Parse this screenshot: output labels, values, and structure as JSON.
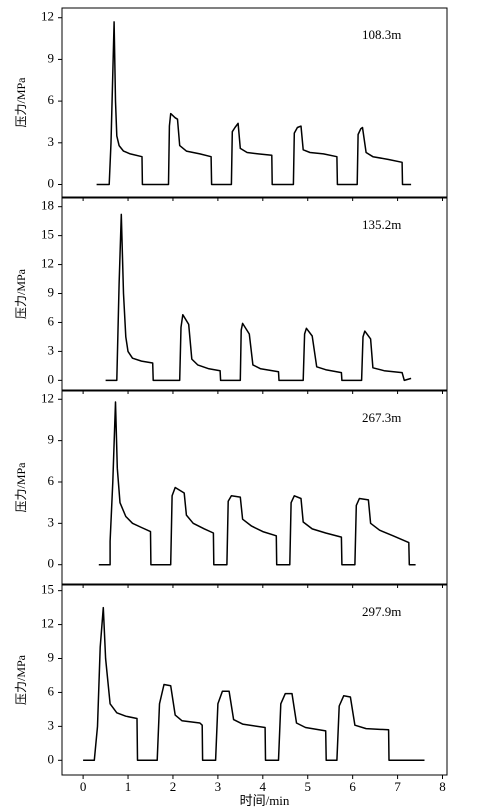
{
  "chart_data": [
    {
      "type": "line",
      "annotation": "108.3m",
      "ylabel": "压力/MPa",
      "ylim": [
        -0.9,
        12.7
      ],
      "yticks": [
        0,
        3,
        6,
        9,
        12
      ],
      "series": [
        {
          "color": "#000000",
          "x": [
            0.3,
            0.58,
            0.62,
            0.66,
            0.69,
            0.72,
            0.75,
            0.8,
            0.9,
            1.05,
            1.31,
            1.32,
            1.9,
            1.92,
            1.95,
            2.05,
            2.1,
            2.15,
            2.3,
            2.6,
            2.85,
            2.86,
            3.3,
            3.32,
            3.38,
            3.45,
            3.5,
            3.65,
            3.9,
            4.2,
            4.21,
            4.68,
            4.7,
            4.77,
            4.85,
            4.9,
            5.05,
            5.35,
            5.65,
            5.66,
            6.1,
            6.12,
            6.18,
            6.22,
            6.3,
            6.45,
            6.8,
            7.1,
            7.11,
            7.3
          ],
          "values": [
            0,
            0,
            3,
            8,
            11.7,
            6,
            3.5,
            2.8,
            2.4,
            2.2,
            2.0,
            0,
            0,
            4.2,
            5.1,
            4.8,
            4.7,
            2.8,
            2.4,
            2.2,
            2.0,
            0,
            0,
            3.8,
            4.1,
            4.4,
            2.6,
            2.3,
            2.2,
            2.1,
            0,
            0,
            3.7,
            4.1,
            4.2,
            2.5,
            2.3,
            2.2,
            2.0,
            0,
            0,
            3.6,
            4.0,
            4.1,
            2.3,
            2.0,
            1.8,
            1.6,
            0,
            0
          ]
        }
      ]
    },
    {
      "type": "line",
      "annotation": "135.2m",
      "ylabel": "压力/MPa",
      "ylim": [
        -1,
        18.9
      ],
      "yticks": [
        0,
        3,
        6,
        9,
        12,
        15,
        18
      ],
      "series": [
        {
          "color": "#000000",
          "x": [
            0.5,
            0.75,
            0.8,
            0.85,
            0.9,
            0.95,
            1.0,
            1.1,
            1.3,
            1.55,
            1.56,
            2.15,
            2.18,
            2.22,
            2.35,
            2.42,
            2.55,
            2.8,
            3.05,
            3.06,
            3.5,
            3.52,
            3.55,
            3.7,
            3.78,
            3.95,
            4.35,
            4.36,
            4.9,
            4.93,
            4.97,
            5.1,
            5.2,
            5.4,
            5.75,
            5.76,
            6.2,
            6.23,
            6.27,
            6.4,
            6.45,
            6.7,
            7.1,
            7.15,
            7.3
          ],
          "values": [
            0,
            0,
            10,
            17.2,
            9,
            4.5,
            3.0,
            2.3,
            2.0,
            1.8,
            0,
            0,
            5.5,
            6.8,
            5.8,
            2.2,
            1.6,
            1.2,
            1.0,
            0,
            0,
            5.2,
            5.9,
            4.8,
            1.6,
            1.2,
            0.9,
            0,
            0,
            4.8,
            5.4,
            4.6,
            1.4,
            1.1,
            0.8,
            0,
            0,
            4.5,
            5.1,
            4.3,
            1.3,
            1.0,
            0.8,
            0,
            0.2
          ]
        }
      ]
    },
    {
      "type": "line",
      "annotation": "267.3m",
      "ylabel": "压力/MPa",
      "ylim": [
        -1.4,
        12.6
      ],
      "yticks": [
        0,
        3,
        6,
        9,
        12
      ],
      "series": [
        {
          "color": "#000000",
          "x": [
            0.35,
            0.6,
            0.6,
            0.66,
            0.72,
            0.76,
            0.82,
            0.95,
            1.1,
            1.3,
            1.5,
            1.51,
            1.95,
            1.98,
            2.05,
            2.25,
            2.3,
            2.45,
            2.7,
            2.9,
            2.91,
            3.2,
            3.23,
            3.3,
            3.5,
            3.55,
            3.75,
            4.0,
            4.3,
            4.31,
            4.6,
            4.63,
            4.7,
            4.85,
            4.9,
            5.1,
            5.4,
            5.75,
            5.76,
            6.05,
            6.08,
            6.15,
            6.35,
            6.4,
            6.6,
            6.9,
            7.25,
            7.26,
            7.4
          ],
          "values": [
            0,
            0,
            1.7,
            6,
            11.8,
            7,
            4.5,
            3.5,
            3.0,
            2.7,
            2.4,
            0,
            0,
            5.0,
            5.6,
            5.2,
            3.6,
            3.0,
            2.6,
            2.3,
            0,
            0,
            4.6,
            5.0,
            4.9,
            3.3,
            2.8,
            2.4,
            2.1,
            0,
            0,
            4.5,
            5.0,
            4.8,
            3.1,
            2.6,
            2.3,
            2.0,
            0,
            0,
            4.3,
            4.8,
            4.7,
            3.0,
            2.5,
            2.1,
            1.6,
            0,
            0
          ]
        }
      ]
    },
    {
      "type": "line",
      "annotation": "297.9m",
      "ylabel": "压力/MPa",
      "ylim": [
        -1.3,
        15.5
      ],
      "yticks": [
        0,
        3,
        6,
        9,
        12,
        15
      ],
      "xlabel": "时间/min",
      "xlim": [
        -0.47,
        8.1
      ],
      "xticks": [
        0,
        1,
        2,
        3,
        4,
        5,
        6,
        7,
        8
      ],
      "series": [
        {
          "color": "#000000",
          "x": [
            0,
            0.25,
            0.32,
            0.38,
            0.45,
            0.5,
            0.6,
            0.75,
            0.95,
            1.2,
            1.21,
            1.65,
            1.7,
            1.8,
            1.95,
            2.05,
            2.2,
            2.6,
            2.65,
            2.66,
            2.95,
            3.0,
            3.1,
            3.25,
            3.35,
            3.55,
            4.05,
            4.06,
            4.35,
            4.4,
            4.5,
            4.65,
            4.75,
            4.95,
            5.4,
            5.41,
            5.65,
            5.7,
            5.8,
            5.95,
            6.05,
            6.3,
            6.8,
            6.81,
            7.6
          ],
          "values": [
            0,
            0,
            3,
            10,
            13.5,
            9,
            5,
            4.2,
            3.9,
            3.7,
            0,
            0,
            5,
            6.7,
            6.6,
            4.0,
            3.5,
            3.3,
            3.1,
            0,
            0,
            5,
            6.1,
            6.1,
            3.6,
            3.2,
            2.9,
            0,
            0,
            5,
            5.9,
            5.9,
            3.3,
            2.9,
            2.6,
            0,
            0,
            4.8,
            5.7,
            5.6,
            3.1,
            2.8,
            2.7,
            0,
            0
          ]
        }
      ]
    }
  ]
}
